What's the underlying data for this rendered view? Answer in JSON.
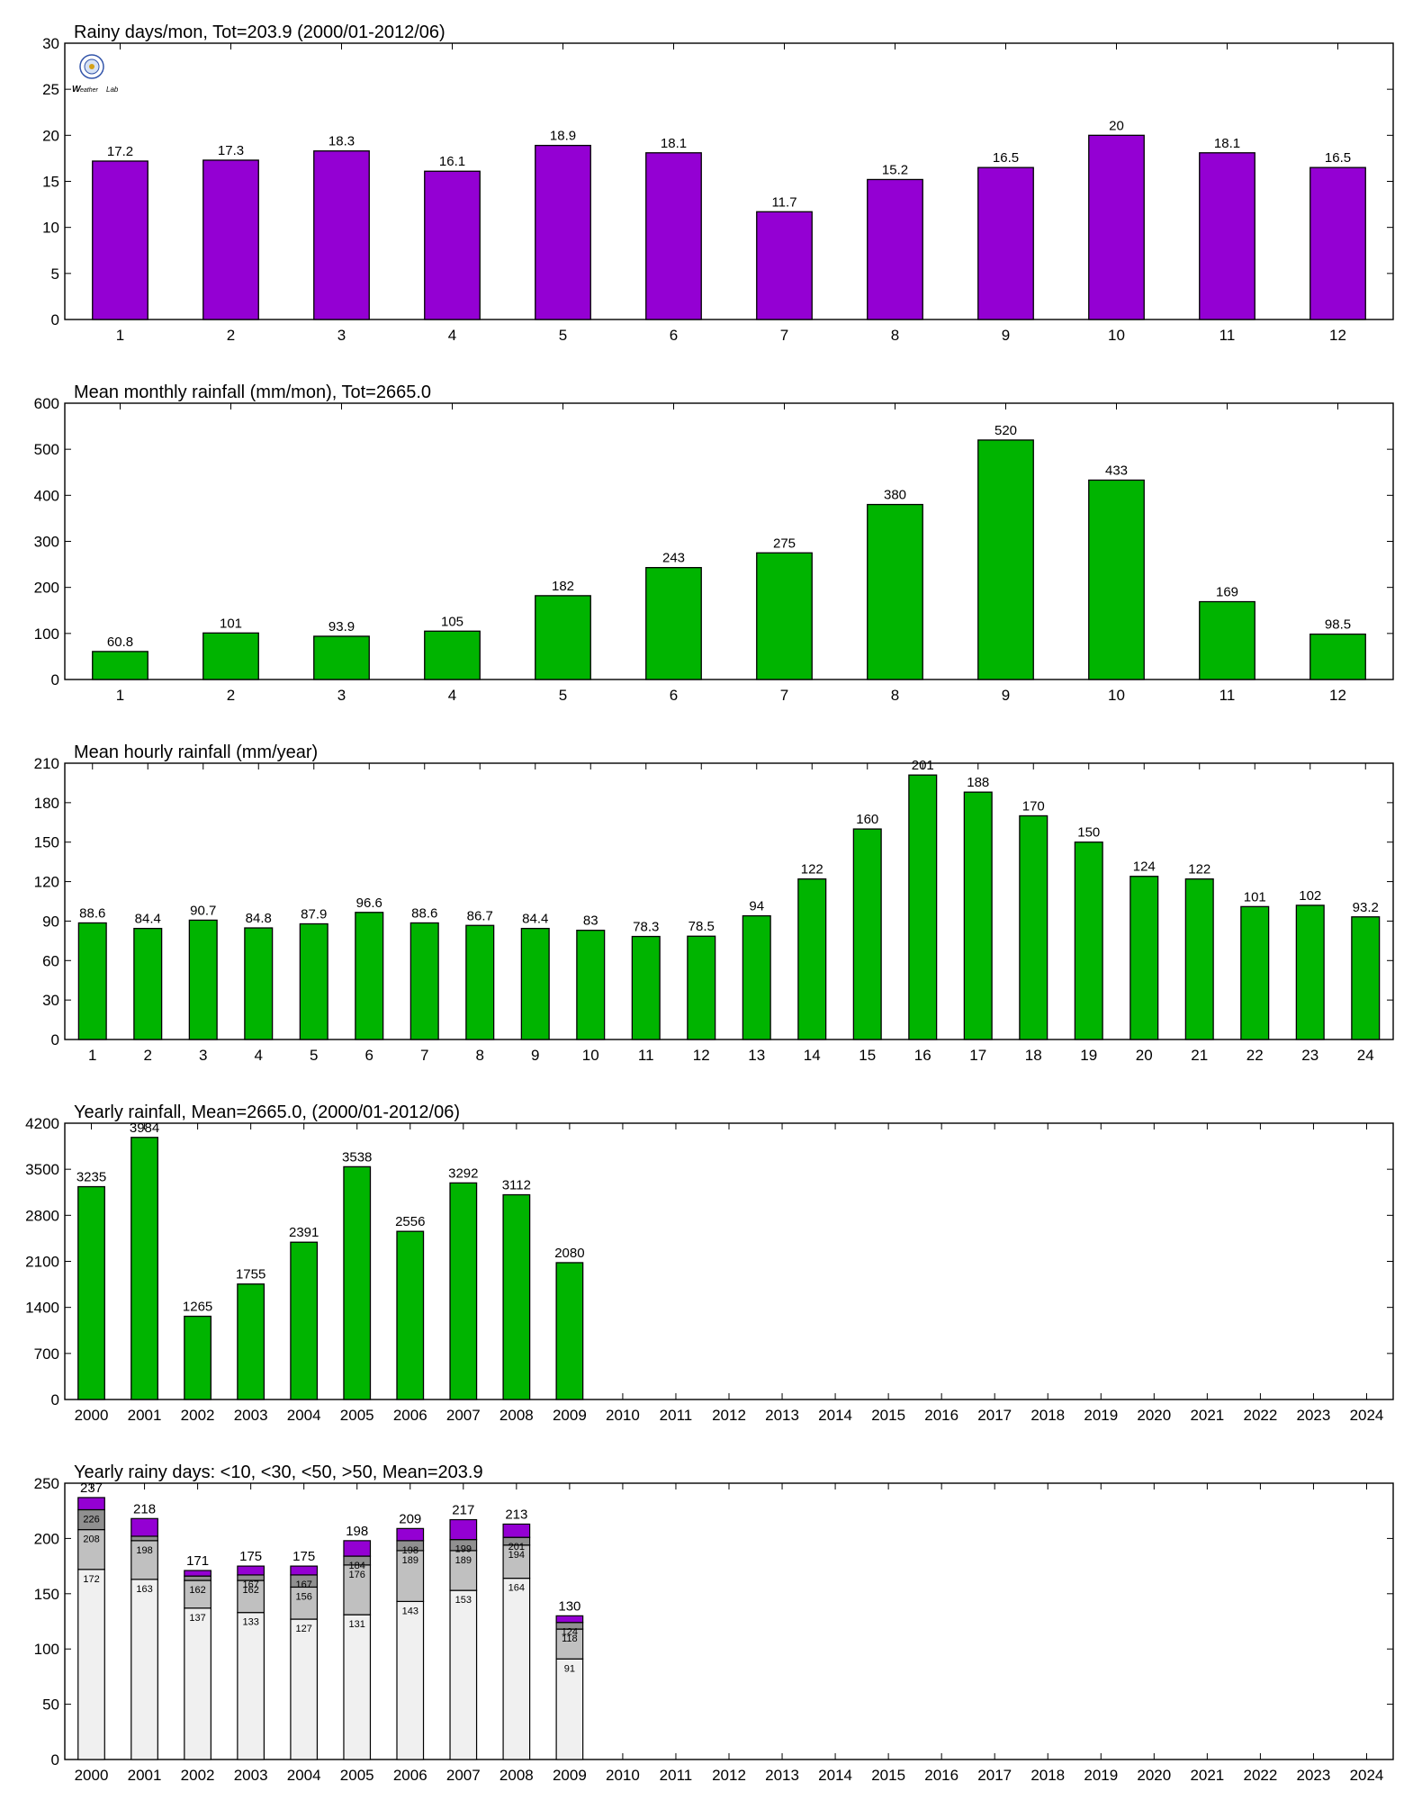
{
  "colors": {
    "purple": "#9400d3",
    "green": "#00b400",
    "stack_lt10": "#f0f0f0",
    "stack_lt30": "#c0c0c0",
    "stack_lt50": "#909090",
    "stack_gt50": "#9400d3"
  },
  "logo": {
    "icon": "weather-lab-logo-icon",
    "text": "Weather Lab"
  },
  "chart_data": [
    {
      "type": "bar",
      "title": "Rainy days/mon, Tot=203.9 (2000/01-2012/06)",
      "categories": [
        "1",
        "2",
        "3",
        "4",
        "5",
        "6",
        "7",
        "8",
        "9",
        "10",
        "11",
        "12"
      ],
      "values": [
        17.2,
        17.3,
        18.3,
        16.1,
        18.9,
        18.1,
        11.7,
        15.2,
        16.5,
        20,
        18.1,
        16.5
      ],
      "labels": [
        "17.2",
        "17.3",
        "18.3",
        "16.1",
        "18.9",
        "18.1",
        "11.7",
        "15.2",
        "16.5",
        "20",
        "18.1",
        "16.5"
      ],
      "ylim": [
        0,
        30
      ],
      "yticks": [
        "0",
        "5",
        "10",
        "15",
        "20",
        "25",
        "30"
      ],
      "color": "purple"
    },
    {
      "type": "bar",
      "title": "Mean monthly rainfall (mm/mon), Tot=2665.0",
      "categories": [
        "1",
        "2",
        "3",
        "4",
        "5",
        "6",
        "7",
        "8",
        "9",
        "10",
        "11",
        "12"
      ],
      "values": [
        60.8,
        101,
        93.9,
        105,
        182,
        243,
        275,
        380,
        520,
        433,
        169,
        98.5
      ],
      "labels": [
        "60.8",
        "101",
        "93.9",
        "105",
        "182",
        "243",
        "275",
        "380",
        "520",
        "433",
        "169",
        "98.5"
      ],
      "ylim": [
        0,
        600
      ],
      "yticks": [
        "0",
        "100",
        "200",
        "300",
        "400",
        "500",
        "600"
      ],
      "color": "green"
    },
    {
      "type": "bar",
      "title": "Mean hourly rainfall (mm/year)",
      "categories": [
        "1",
        "2",
        "3",
        "4",
        "5",
        "6",
        "7",
        "8",
        "9",
        "10",
        "11",
        "12",
        "13",
        "14",
        "15",
        "16",
        "17",
        "18",
        "19",
        "20",
        "21",
        "22",
        "23",
        "24"
      ],
      "values": [
        88.6,
        84.4,
        90.7,
        84.8,
        87.9,
        96.6,
        88.6,
        86.7,
        84.4,
        83,
        78.3,
        78.5,
        94,
        122,
        160,
        201,
        188,
        170,
        150,
        124,
        122,
        101,
        102,
        93.2
      ],
      "labels": [
        "88.6",
        "84.4",
        "90.7",
        "84.8",
        "87.9",
        "96.6",
        "88.6",
        "86.7",
        "84.4",
        "83",
        "78.3",
        "78.5",
        "94",
        "122",
        "160",
        "201",
        "188",
        "170",
        "150",
        "124",
        "122",
        "101",
        "102",
        "93.2"
      ],
      "ylim": [
        0,
        210
      ],
      "yticks": [
        "0",
        "30",
        "60",
        "90",
        "120",
        "150",
        "180",
        "210"
      ],
      "color": "green"
    },
    {
      "type": "bar",
      "title": "Yearly rainfall, Mean=2665.0, (2000/01-2012/06)",
      "categories": [
        "2000",
        "2001",
        "2002",
        "2003",
        "2004",
        "2005",
        "2006",
        "2007",
        "2008",
        "2009",
        "2010",
        "2011",
        "2012",
        "2013",
        "2014",
        "2015",
        "2016",
        "2017",
        "2018",
        "2019",
        "2020",
        "2021",
        "2022",
        "2023",
        "2024"
      ],
      "values": [
        3235,
        3984,
        1265,
        1755,
        2391,
        3538,
        2556,
        3292,
        3112,
        2080,
        null,
        null,
        null,
        null,
        null,
        null,
        null,
        null,
        null,
        null,
        null,
        null,
        null,
        null,
        null
      ],
      "labels": [
        "3235",
        "3984",
        "1265",
        "1755",
        "2391",
        "3538",
        "2556",
        "3292",
        "3112",
        "2080",
        "",
        "",
        "",
        "",
        "",
        "",
        "",
        "",
        "",
        "",
        "",
        "",
        "",
        "",
        ""
      ],
      "ylim": [
        0,
        4200
      ],
      "yticks": [
        "0",
        "700",
        "1400",
        "2100",
        "2800",
        "3500",
        "4200"
      ],
      "color": "green"
    },
    {
      "type": "bar",
      "stacked": true,
      "title": "Yearly rainy days: <10, <30, <50, >50, Mean=203.9",
      "categories": [
        "2000",
        "2001",
        "2002",
        "2003",
        "2004",
        "2005",
        "2006",
        "2007",
        "2008",
        "2009",
        "2010",
        "2011",
        "2012",
        "2013",
        "2014",
        "2015",
        "2016",
        "2017",
        "2018",
        "2019",
        "2020",
        "2021",
        "2022",
        "2023",
        "2024"
      ],
      "cumulative": [
        [
          172,
          208,
          226,
          237
        ],
        [
          163,
          198,
          202,
          218
        ],
        [
          137,
          162,
          166,
          171
        ],
        [
          133,
          162,
          167,
          175
        ],
        [
          127,
          156,
          167,
          175
        ],
        [
          131,
          176,
          184,
          198
        ],
        [
          143,
          189,
          198,
          209
        ],
        [
          153,
          189,
          199,
          217
        ],
        [
          164,
          194,
          201,
          213
        ],
        [
          91,
          118,
          124,
          130
        ]
      ],
      "segment_labels": [
        [
          "172",
          "208",
          "226"
        ],
        [
          "163",
          "198",
          ""
        ],
        [
          "137",
          "162",
          ""
        ],
        [
          "133",
          "162",
          "167"
        ],
        [
          "127",
          "156",
          "167"
        ],
        [
          "131",
          "176",
          "184"
        ],
        [
          "143",
          "189",
          "198"
        ],
        [
          "153",
          "189",
          "199"
        ],
        [
          "164",
          "194",
          "201"
        ],
        [
          "91",
          "118",
          "124"
        ]
      ],
      "totals": [
        "237",
        "218",
        "171",
        "175",
        "175",
        "198",
        "209",
        "217",
        "213",
        "130"
      ],
      "ylim": [
        0,
        250
      ],
      "yticks": [
        "0",
        "50",
        "100",
        "150",
        "200",
        "250"
      ]
    }
  ]
}
